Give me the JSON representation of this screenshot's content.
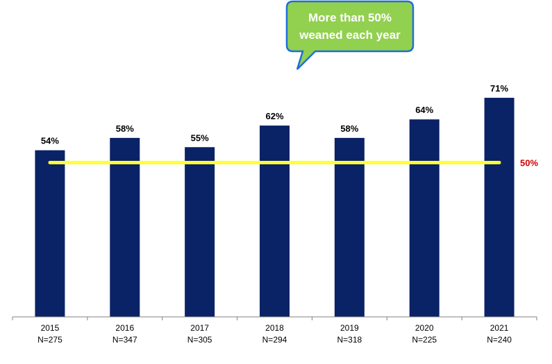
{
  "chart_data": {
    "type": "bar",
    "categories": [
      "2015",
      "2016",
      "2017",
      "2018",
      "2019",
      "2020",
      "2021"
    ],
    "sample_sizes": [
      "N=275",
      "N=347",
      "N=305",
      "N=294",
      "N=318",
      "N=225",
      "N=240"
    ],
    "values": [
      54,
      58,
      55,
      62,
      58,
      64,
      71
    ],
    "value_labels": [
      "54%",
      "58%",
      "55%",
      "62%",
      "58%",
      "64%",
      "71%"
    ],
    "ylim": [
      0,
      100
    ],
    "reference_line": {
      "value": 50,
      "label": "50%"
    },
    "annotation": {
      "line1": "More than 50%",
      "line2": "weaned each year"
    },
    "colors": {
      "bar": "#0a2266",
      "reference_line": "#ffff33",
      "reference_label": "#cc0000",
      "callout_fill": "#92d050",
      "callout_border": "#1f6fd6",
      "callout_text": "#ffffff"
    },
    "grid": false,
    "legend": "none"
  }
}
